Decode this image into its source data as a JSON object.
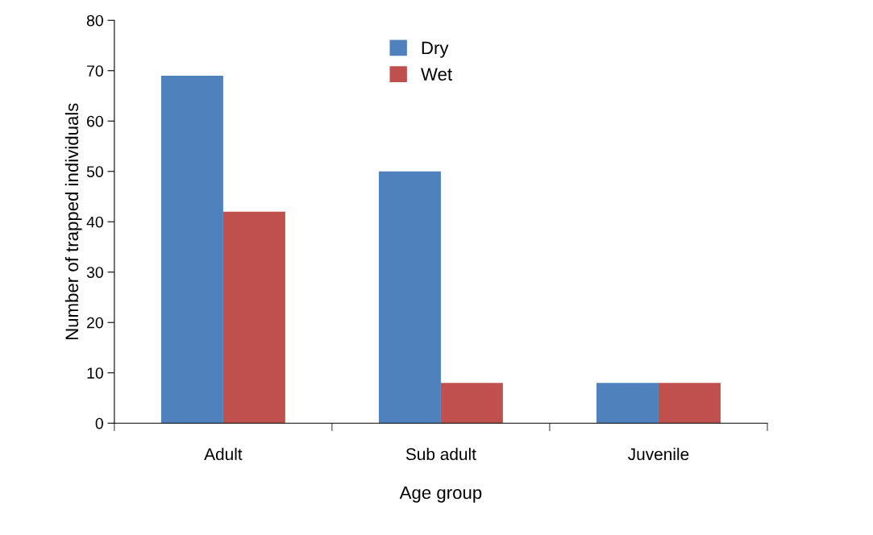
{
  "chart_data": {
    "type": "bar",
    "xlabel": "Age group",
    "ylabel": "Number of trapped individuals",
    "categories": [
      "Adult",
      "Sub adult",
      "Juvenile"
    ],
    "series": [
      {
        "name": "Dry",
        "color": "#4f81bd",
        "values": [
          69,
          50,
          8
        ]
      },
      {
        "name": "Wet",
        "color": "#c0504d",
        "values": [
          42,
          8,
          8
        ]
      }
    ],
    "ylim": [
      0,
      80
    ],
    "yticks": [
      0,
      10,
      20,
      30,
      40,
      50,
      60,
      70,
      80
    ],
    "grid": false,
    "legend": "top"
  }
}
